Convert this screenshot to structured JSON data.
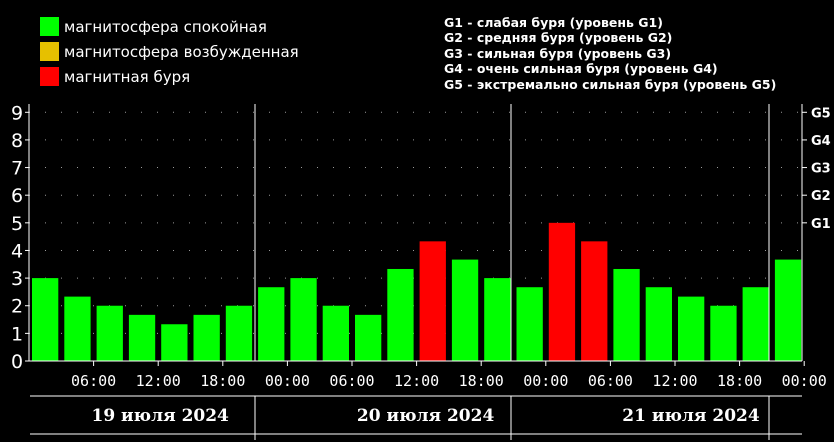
{
  "legend": [
    {
      "label": "магнитосфера спокойная",
      "color": "#00ff00"
    },
    {
      "label": "магнитосфера возбужденная",
      "color": "#e6c000"
    },
    {
      "label": "магнитная буря",
      "color": "#ff0000"
    }
  ],
  "storm_levels": [
    "G1 - слабая буря (уровень G1)",
    "G2 - средняя буря (уровень G2)",
    "G3 - сильная буря (уровень G3)",
    "G4 - очень сильная буря (уровень G4)",
    "G5 - экстремально сильная буря (уровень G5)"
  ],
  "chart_data": {
    "type": "bar",
    "ylim": [
      0,
      9
    ],
    "y_ticks": [
      0,
      1,
      2,
      3,
      4,
      5,
      6,
      7,
      8,
      9
    ],
    "right_ticks": [
      {
        "label": "G1",
        "value": 5
      },
      {
        "label": "G2",
        "value": 6
      },
      {
        "label": "G3",
        "value": 7
      },
      {
        "label": "G4",
        "value": 8
      },
      {
        "label": "G5",
        "value": 9
      }
    ],
    "x_tick_labels": [
      "06:00",
      "12:00",
      "18:00",
      "00:00",
      "06:00",
      "12:00",
      "18:00",
      "00:00",
      "06:00",
      "12:00",
      "18:00",
      "00:00"
    ],
    "days": [
      "19 июля 2024",
      "20 июля 2024",
      "21 июля 2024"
    ],
    "values": [
      3.0,
      2.33,
      2.0,
      1.67,
      1.33,
      1.67,
      2.0,
      2.67,
      3.0,
      2.0,
      1.67,
      3.33,
      4.33,
      3.67,
      3.0,
      2.67,
      5.0,
      4.33,
      3.33,
      2.67,
      2.33,
      2.0,
      2.67,
      3.67
    ],
    "colors": [
      "#00ff00",
      "#00ff00",
      "#00ff00",
      "#00ff00",
      "#00ff00",
      "#00ff00",
      "#00ff00",
      "#00ff00",
      "#00ff00",
      "#00ff00",
      "#00ff00",
      "#00ff00",
      "#ff0000",
      "#00ff00",
      "#00ff00",
      "#00ff00",
      "#ff0000",
      "#ff0000",
      "#00ff00",
      "#00ff00",
      "#00ff00",
      "#00ff00",
      "#00ff00",
      "#00ff00"
    ],
    "grid": true
  }
}
